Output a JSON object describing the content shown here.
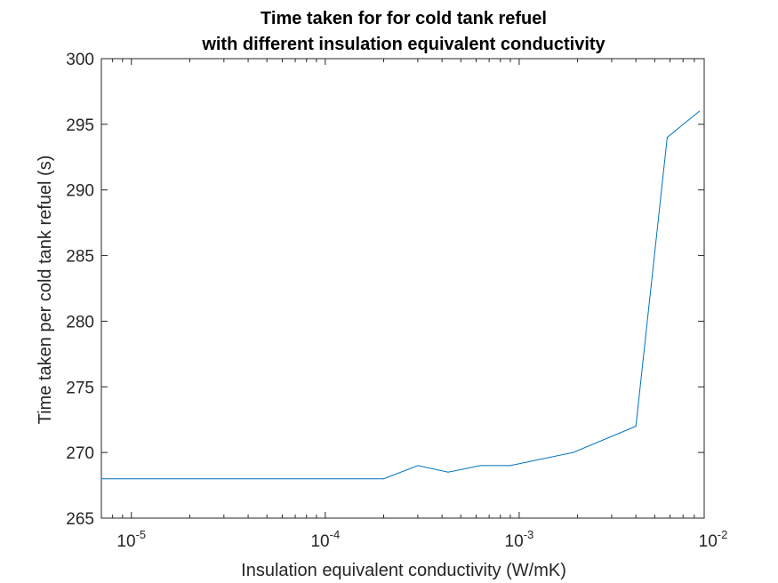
{
  "chart_data": {
    "type": "line",
    "title": [
      "Time taken for for cold tank refuel",
      "with different insulation equivalent conductivity"
    ],
    "xlabel": "Insulation equivalent conductivity (W/mK)",
    "ylabel": "Time taken per cold tank refuel (s)",
    "xscale": "log",
    "xlim": [
      7e-06,
      0.009
    ],
    "ylim": [
      265,
      300
    ],
    "grid": false,
    "x_ticks": [
      {
        "value": 1e-05,
        "base": "10",
        "exp": "-5"
      },
      {
        "value": 0.0001,
        "base": "10",
        "exp": "-4"
      },
      {
        "value": 0.001,
        "base": "10",
        "exp": "-3"
      },
      {
        "value": 0.01,
        "base": "10",
        "exp": "-2"
      }
    ],
    "y_ticks": [
      "265",
      "270",
      "275",
      "280",
      "285",
      "290",
      "295",
      "300"
    ],
    "series": [
      {
        "color": "#0072BD",
        "x": [
          7e-06,
          0.0002,
          0.0003,
          0.00043,
          0.00063,
          0.0009,
          0.0019,
          0.004,
          0.0058,
          0.0085
        ],
        "y": [
          268,
          268,
          269,
          268.5,
          269,
          269,
          270,
          272,
          294,
          296
        ]
      }
    ]
  }
}
